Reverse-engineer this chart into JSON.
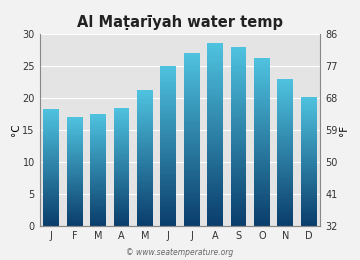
{
  "title": "Al Maṭarīyah water temp",
  "months": [
    "J",
    "F",
    "M",
    "A",
    "M",
    "J",
    "J",
    "A",
    "S",
    "O",
    "N",
    "D"
  ],
  "values": [
    18.2,
    17.0,
    17.5,
    18.5,
    21.2,
    25.0,
    27.0,
    28.5,
    28.0,
    26.2,
    23.0,
    20.2
  ],
  "ylim_c": [
    0,
    30
  ],
  "ylim_f": [
    32,
    86
  ],
  "yticks_c": [
    0,
    5,
    10,
    15,
    20,
    25,
    30
  ],
  "yticks_f": [
    32,
    41,
    50,
    59,
    68,
    77,
    86
  ],
  "ylabel_left": "°C",
  "ylabel_right": "°F",
  "bar_color_bottom": "#0a3d6b",
  "bar_color_top": "#4fc3e0",
  "bg_color": "#f2f2f2",
  "plot_bg_color": "#e4e4e4",
  "watermark": "© www.seatemperature.org",
  "title_fontsize": 10.5,
  "tick_fontsize": 7.0,
  "label_fontsize": 7.5,
  "bar_width": 0.68
}
